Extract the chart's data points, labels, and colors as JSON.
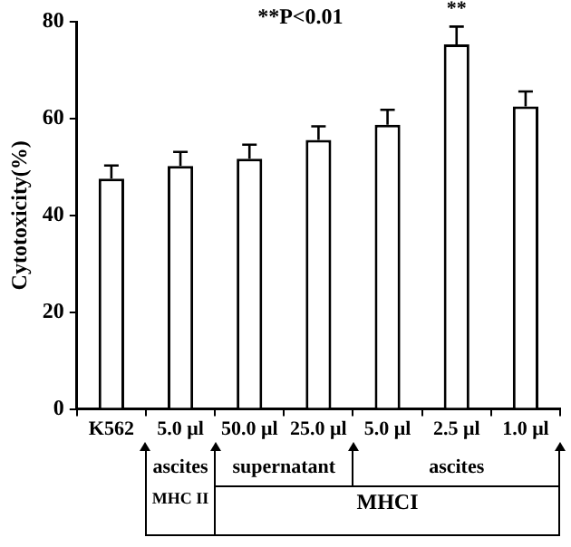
{
  "chart_data": {
    "type": "bar",
    "ylabel": "Cytotoxicity(%)",
    "categories": [
      "K562",
      "5.0 μl",
      "50.0 μl",
      "25.0 μl",
      "5.0 μl",
      "2.5 μl",
      "1.0 μl"
    ],
    "values": [
      47.6,
      50.2,
      51.7,
      55.6,
      58.7,
      75.3,
      62.5
    ],
    "errors": [
      [
        47.6,
        50.3
      ],
      [
        50.2,
        53.1
      ],
      [
        51.7,
        54.6
      ],
      [
        55.6,
        58.4
      ],
      [
        58.7,
        61.8
      ],
      [
        75.3,
        79.0
      ],
      [
        62.5,
        65.6
      ]
    ],
    "color": "#ffffff",
    "ylim": [
      0,
      80
    ],
    "yticks": [
      0,
      20,
      40,
      60,
      80
    ],
    "grid": false,
    "legend": false,
    "annotations": [
      "**P<0.01",
      {
        "text": "**",
        "x": "2.5 μl",
        "y": 79.0
      },
      "ascites",
      "supernatant",
      "ascites",
      "MHC II",
      "MHCI"
    ]
  }
}
